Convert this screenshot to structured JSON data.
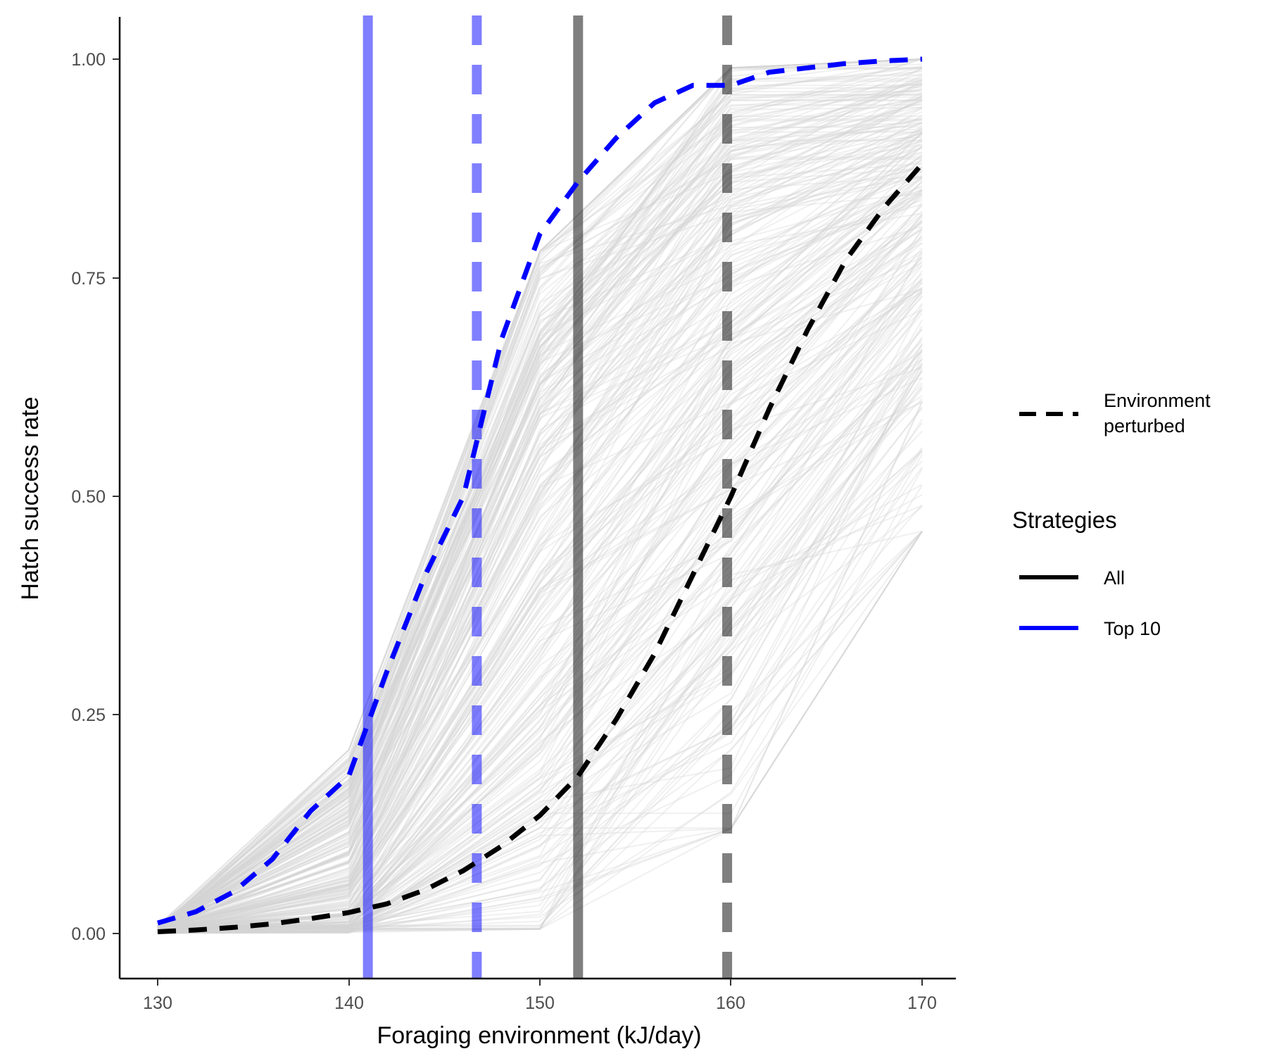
{
  "chart_data": {
    "type": "line",
    "xlabel": "Foraging environment (kJ/day)",
    "ylabel": "Hatch success rate",
    "xlim": [
      128,
      172
    ],
    "ylim": [
      -0.05,
      1.05
    ],
    "x_ticks": [
      "130",
      "140",
      "150",
      "160",
      "170"
    ],
    "y_ticks": [
      "0.00",
      "0.25",
      "0.50",
      "0.75",
      "1.00"
    ],
    "grid": false,
    "legend_position": "right",
    "legend": {
      "linetype_label_line1": "Environment",
      "linetype_label_line2": "perturbed",
      "strategies_title": "Strategies",
      "strategies": [
        {
          "label": "All",
          "color": "#000000"
        },
        {
          "label": "Top 10",
          "color": "#0000ff"
        }
      ]
    },
    "background_strategies": {
      "color": "#d3d3d3",
      "count": 300,
      "x": [
        130,
        140,
        150,
        160,
        170
      ],
      "start_range": [
        0.0,
        0.01
      ],
      "range_at_140": [
        0.0,
        0.21
      ],
      "range_at_150": [
        0.005,
        0.78
      ],
      "range_at_160": [
        0.12,
        0.99
      ],
      "range_at_170": [
        0.46,
        1.0
      ]
    },
    "series": [
      {
        "name": "All",
        "color": "#000000",
        "linestyle": "dashed",
        "x": [
          130,
          132,
          134,
          136,
          138,
          140,
          142,
          144,
          146,
          148,
          150,
          152,
          154,
          156,
          158,
          160,
          162,
          164,
          166,
          168,
          170
        ],
        "y": [
          0.002,
          0.004,
          0.007,
          0.011,
          0.017,
          0.024,
          0.034,
          0.05,
          0.072,
          0.1,
          0.135,
          0.18,
          0.245,
          0.32,
          0.41,
          0.5,
          0.6,
          0.69,
          0.77,
          0.83,
          0.88
        ]
      },
      {
        "name": "Top 10",
        "color": "#0000ff",
        "linestyle": "dashed",
        "x": [
          130,
          132,
          134,
          136,
          138,
          140,
          142,
          144,
          146,
          148,
          150,
          152,
          154,
          156,
          158,
          160,
          162,
          164,
          166,
          168,
          170
        ],
        "y": [
          0.012,
          0.025,
          0.048,
          0.085,
          0.14,
          0.18,
          0.3,
          0.41,
          0.5,
          0.68,
          0.8,
          0.86,
          0.91,
          0.95,
          0.97,
          0.97,
          0.985,
          0.99,
          0.995,
          0.998,
          1.0
        ]
      }
    ],
    "vertical_lines": [
      {
        "x": 141,
        "color": "#0000ff",
        "linestyle": "solid",
        "opacity": 0.5
      },
      {
        "x": 146.7,
        "color": "#0000ff",
        "linestyle": "dashed",
        "opacity": 0.5
      },
      {
        "x": 152,
        "color": "#000000",
        "linestyle": "solid",
        "opacity": 0.5
      },
      {
        "x": 159.8,
        "color": "#000000",
        "linestyle": "dashed",
        "opacity": 0.5
      }
    ]
  }
}
